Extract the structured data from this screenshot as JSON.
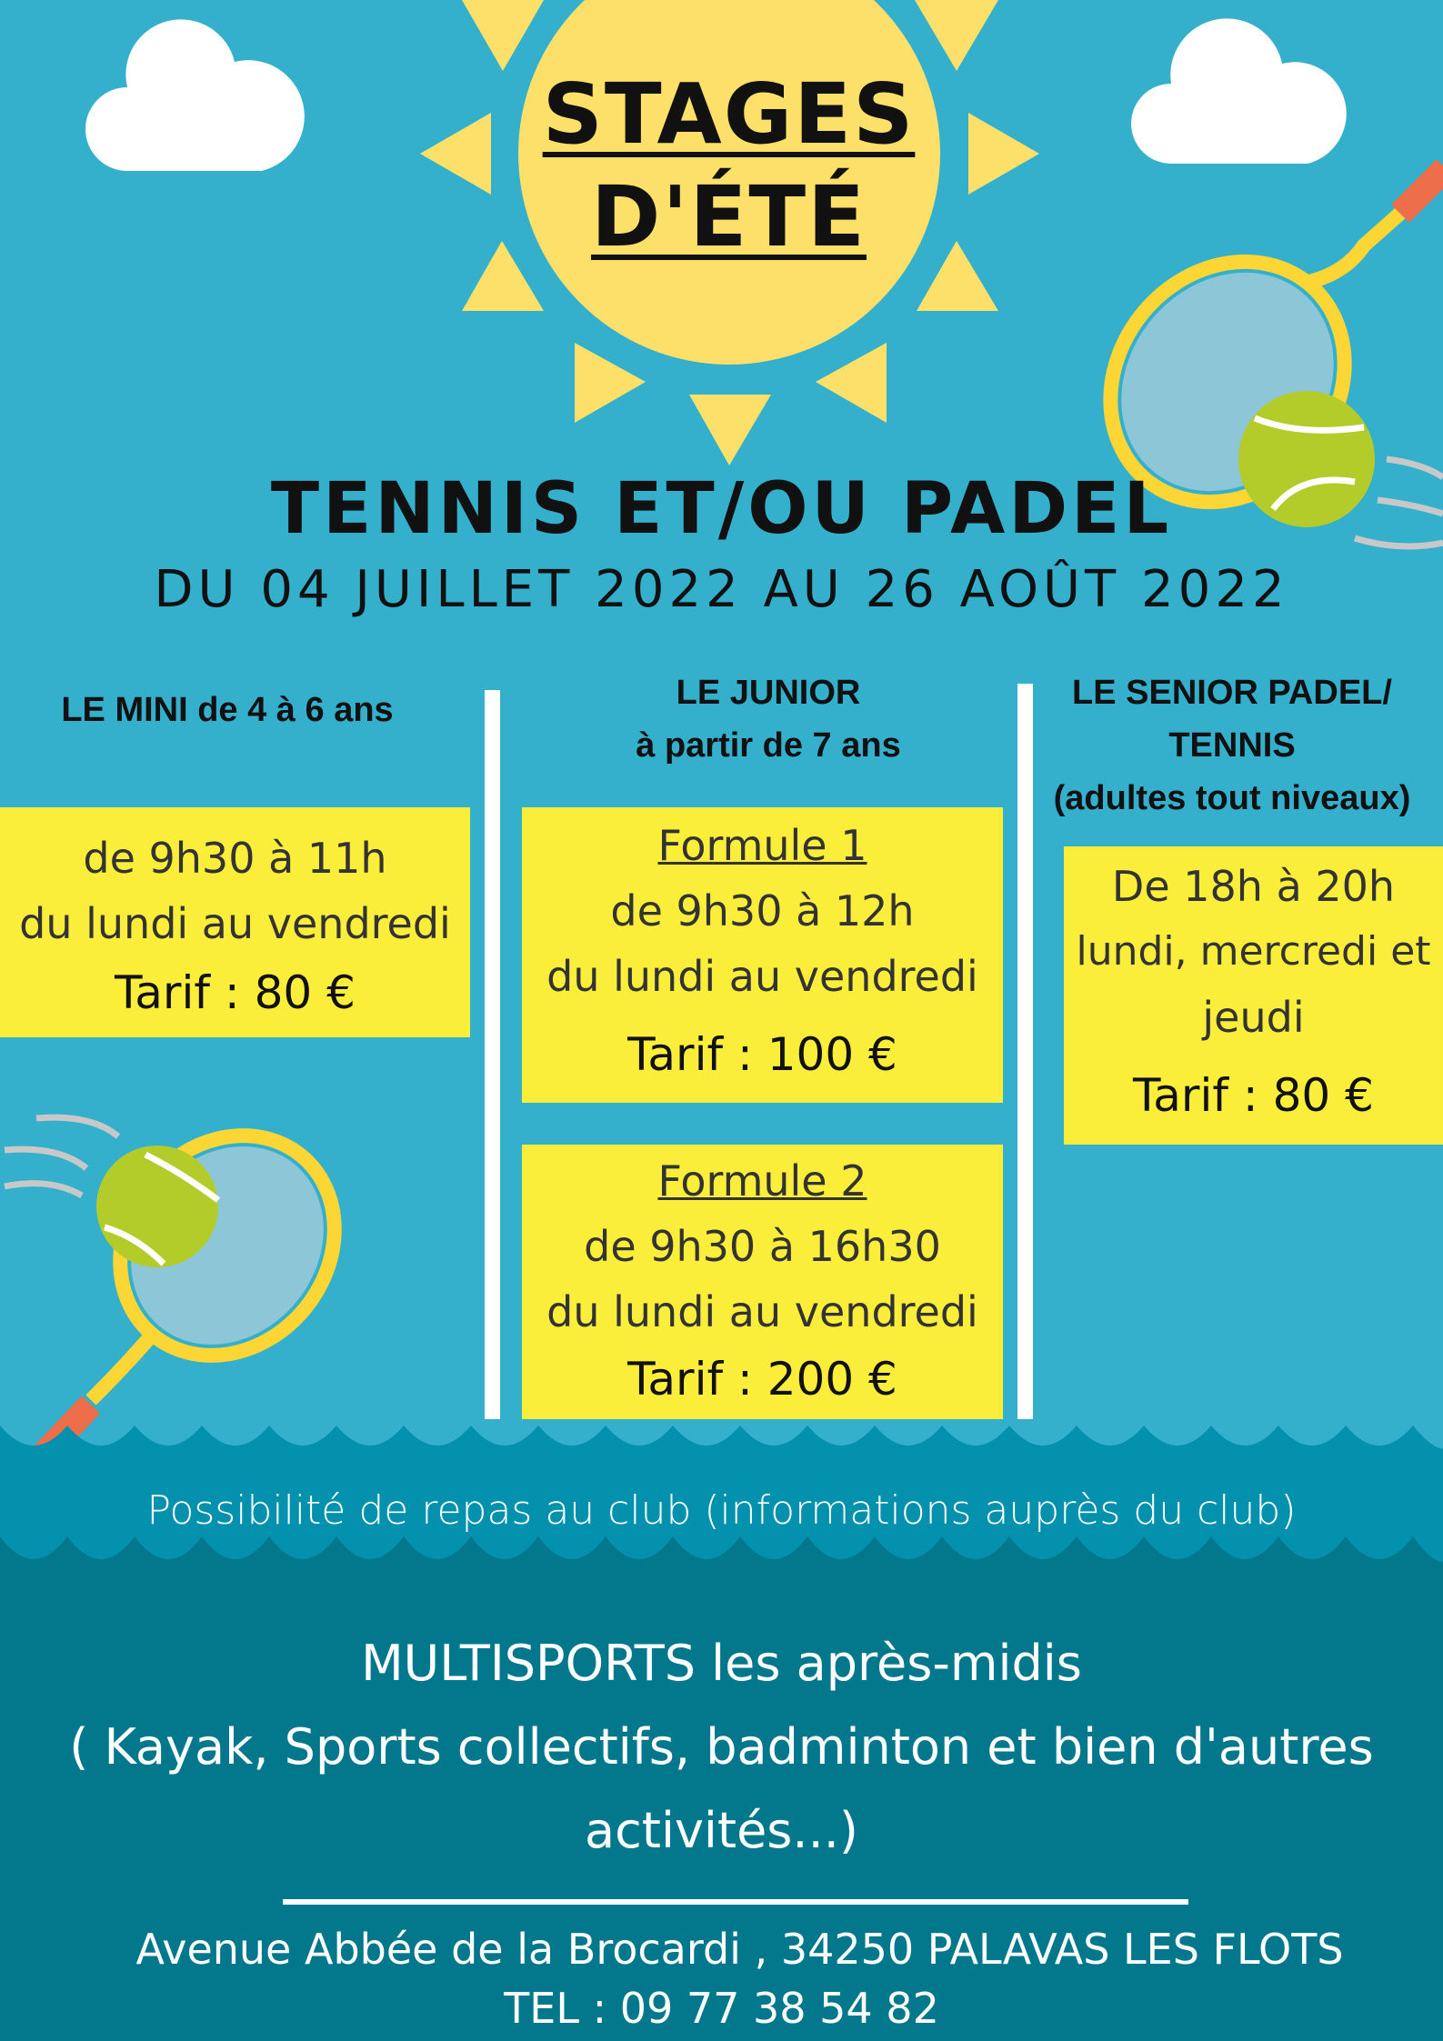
{
  "title": {
    "line1": "STAGES",
    "line2": "D'ÉTÉ"
  },
  "subtitle": "TENNIS ET/OU PADEL",
  "dates": "DU 04 JUILLET 2022 AU 26 AOÛT 2022",
  "columns": [
    {
      "header": [
        "LE MINI de 4 à 6 ans"
      ],
      "boxes": [
        {
          "lines": [
            "de 9h30 à 11h",
            "du lundi au vendredi"
          ],
          "tarif": "Tarif : 80 €"
        }
      ]
    },
    {
      "header": [
        "LE JUNIOR",
        "à partir de 7 ans"
      ],
      "boxes": [
        {
          "formule": "Formule 1",
          "lines": [
            "de 9h30 à 12h",
            "du lundi au vendredi"
          ],
          "tarif": "Tarif : 100 €"
        },
        {
          "formule": "Formule 2",
          "lines": [
            "de 9h30 à 16h30",
            "du lundi au vendredi"
          ],
          "tarif": "Tarif : 200 €"
        }
      ]
    },
    {
      "header": [
        "LE SENIOR PADEL/",
        "TENNIS",
        "(adultes tout niveaux)"
      ],
      "boxes": [
        {
          "lines": [
            "De 18h à 20h",
            "lundi, mercredi et",
            "jeudi"
          ],
          "tarif": "Tarif : 80 €"
        }
      ]
    }
  ],
  "repas": "Possibilité de repas au club (informations auprès du club)",
  "multisports": [
    "MULTISPORTS les après-midis",
    "( Kayak, Sports collectifs, badminton et bien d'autres",
    "activités...)"
  ],
  "address": "Avenue Abbée de la Brocardi , 34250 PALAVAS LES FLOTS",
  "tel": "TEL : 09 77 38 54 82",
  "colors": {
    "sky": "#34b0cd",
    "sea": "#0391ad",
    "deep": "#03788d",
    "sun": "#fde06a",
    "box": "#fbee3a"
  }
}
